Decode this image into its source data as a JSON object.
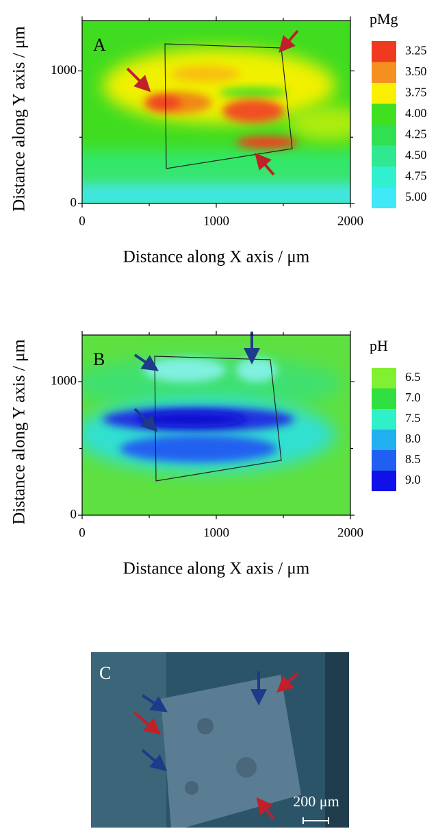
{
  "chart_data": [
    {
      "type": "heatmap",
      "panel": "A",
      "xlabel": "Distance along X axis / μm",
      "ylabel": "Distance along Y axis / μm",
      "xlim": [
        0,
        2000
      ],
      "xticks": [
        0,
        1000,
        2000
      ],
      "minor_xticks": [
        500,
        1500
      ],
      "ylim": [
        0,
        1380
      ],
      "yticks": [
        0,
        1000
      ],
      "minor_yticks": [
        500
      ],
      "colorbar": {
        "title": "pMg",
        "values": [
          3.25,
          3.5,
          3.75,
          4.0,
          4.25,
          4.5,
          4.75,
          5.0
        ],
        "value_labels": [
          "3.25",
          "3.50",
          "3.75",
          "4.00",
          "4.25",
          "4.50",
          "4.75",
          "5.00"
        ],
        "colors": [
          "#f03a20",
          "#f49020",
          "#f8f000",
          "#40e020",
          "#30e050",
          "#30e890",
          "#30f0d0",
          "#40e8f8"
        ]
      }
    },
    {
      "type": "heatmap",
      "panel": "B",
      "xlabel": "Distance along X axis / μm",
      "ylabel": "Distance along Y axis / μm",
      "xlim": [
        0,
        2000
      ],
      "xticks": [
        0,
        1000,
        2000
      ],
      "minor_xticks": [
        500,
        1500
      ],
      "ylim": [
        0,
        1350
      ],
      "yticks": [
        0,
        1000
      ],
      "minor_yticks": [
        500
      ],
      "colorbar": {
        "title": "pH",
        "values": [
          6.5,
          7.0,
          7.5,
          8.0,
          8.5,
          9.0
        ],
        "value_labels": [
          "6.5",
          "7.0",
          "7.5",
          "8.0",
          "8.5",
          "9.0"
        ],
        "colors": [
          "#80f030",
          "#30e040",
          "#30f0c8",
          "#20b0f0",
          "#2060f0",
          "#1010e8"
        ]
      }
    }
  ],
  "photo": {
    "panel": "C",
    "scale_bar": "200 μm"
  }
}
